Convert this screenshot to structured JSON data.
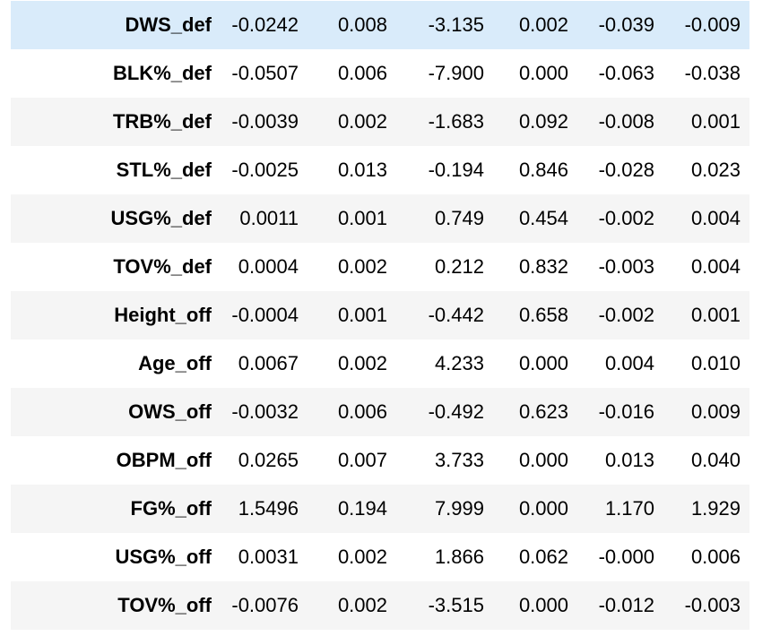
{
  "table": {
    "rows": [
      {
        "label": "DWS_def",
        "values": [
          "-0.0242",
          "0.008",
          "-3.135",
          "0.002",
          "-0.039",
          "-0.009"
        ]
      },
      {
        "label": "BLK%_def",
        "values": [
          "-0.0507",
          "0.006",
          "-7.900",
          "0.000",
          "-0.063",
          "-0.038"
        ]
      },
      {
        "label": "TRB%_def",
        "values": [
          "-0.0039",
          "0.002",
          "-1.683",
          "0.092",
          "-0.008",
          "0.001"
        ]
      },
      {
        "label": "STL%_def",
        "values": [
          "-0.0025",
          "0.013",
          "-0.194",
          "0.846",
          "-0.028",
          "0.023"
        ]
      },
      {
        "label": "USG%_def",
        "values": [
          "0.0011",
          "0.001",
          "0.749",
          "0.454",
          "-0.002",
          "0.004"
        ]
      },
      {
        "label": "TOV%_def",
        "values": [
          "0.0004",
          "0.002",
          "0.212",
          "0.832",
          "-0.003",
          "0.004"
        ]
      },
      {
        "label": "Height_off",
        "values": [
          "-0.0004",
          "0.001",
          "-0.442",
          "0.658",
          "-0.002",
          "0.001"
        ]
      },
      {
        "label": "Age_off",
        "values": [
          "0.0067",
          "0.002",
          "4.233",
          "0.000",
          "0.004",
          "0.010"
        ]
      },
      {
        "label": "OWS_off",
        "values": [
          "-0.0032",
          "0.006",
          "-0.492",
          "0.623",
          "-0.016",
          "0.009"
        ]
      },
      {
        "label": "OBPM_off",
        "values": [
          "0.0265",
          "0.007",
          "3.733",
          "0.000",
          "0.013",
          "0.040"
        ]
      },
      {
        "label": "FG%_off",
        "values": [
          "1.5496",
          "0.194",
          "7.999",
          "0.000",
          "1.170",
          "1.929"
        ]
      },
      {
        "label": "USG%_off",
        "values": [
          "0.0031",
          "0.002",
          "1.866",
          "0.062",
          "-0.000",
          "0.006"
        ]
      },
      {
        "label": "TOV%_off",
        "values": [
          "-0.0076",
          "0.002",
          "-3.515",
          "0.000",
          "-0.012",
          "-0.003"
        ]
      }
    ]
  },
  "colors": {
    "highlight_row": "#d9ebfa",
    "stripe_row": "#f5f5f5",
    "plain_row": "#ffffff"
  }
}
